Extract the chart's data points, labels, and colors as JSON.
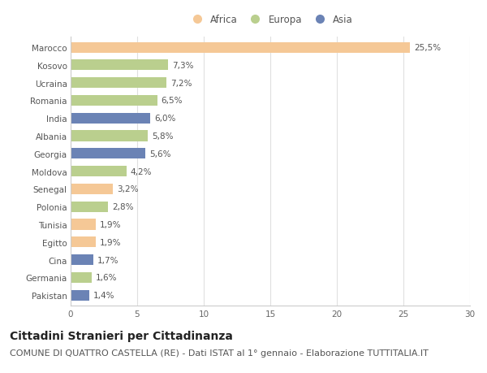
{
  "countries": [
    "Marocco",
    "Kosovo",
    "Ucraina",
    "Romania",
    "India",
    "Albania",
    "Georgia",
    "Moldova",
    "Senegal",
    "Polonia",
    "Tunisia",
    "Egitto",
    "Cina",
    "Germania",
    "Pakistan"
  ],
  "values": [
    25.5,
    7.3,
    7.2,
    6.5,
    6.0,
    5.8,
    5.6,
    4.2,
    3.2,
    2.8,
    1.9,
    1.9,
    1.7,
    1.6,
    1.4
  ],
  "labels": [
    "25,5%",
    "7,3%",
    "7,2%",
    "6,5%",
    "6,0%",
    "5,8%",
    "5,6%",
    "4,2%",
    "3,2%",
    "2,8%",
    "1,9%",
    "1,9%",
    "1,7%",
    "1,6%",
    "1,4%"
  ],
  "continents": [
    "Africa",
    "Europa",
    "Europa",
    "Europa",
    "Asia",
    "Europa",
    "Asia",
    "Europa",
    "Africa",
    "Europa",
    "Africa",
    "Africa",
    "Asia",
    "Europa",
    "Asia"
  ],
  "colors": {
    "Africa": "#F5C896",
    "Europa": "#BACF8E",
    "Asia": "#6B83B5"
  },
  "xlim": [
    0,
    30
  ],
  "xticks": [
    0,
    5,
    10,
    15,
    20,
    25,
    30
  ],
  "title": "Cittadini Stranieri per Cittadinanza",
  "subtitle": "COMUNE DI QUATTRO CASTELLA (RE) - Dati ISTAT al 1° gennaio - Elaborazione TUTTITALIA.IT",
  "background_color": "#ffffff",
  "bar_height": 0.6,
  "title_fontsize": 10,
  "subtitle_fontsize": 8,
  "label_fontsize": 7.5,
  "tick_fontsize": 7.5,
  "legend_fontsize": 8.5
}
